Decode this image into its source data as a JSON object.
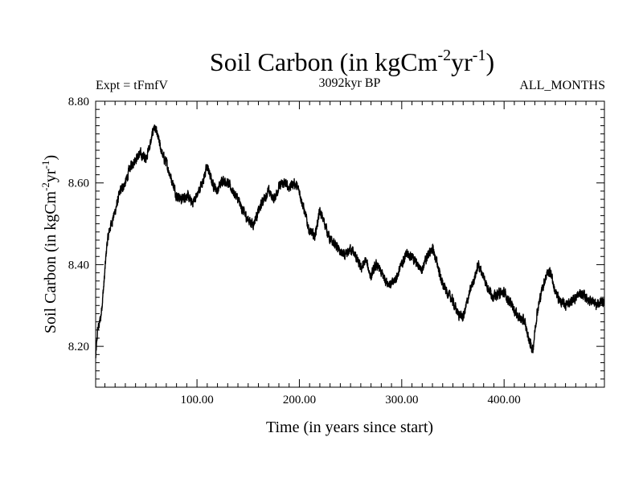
{
  "chart_data": {
    "type": "line",
    "title": {
      "base": "Soil Carbon (in kgCm",
      "exp1": "-2",
      "mid": "yr",
      "exp2": "-1",
      "close": ")"
    },
    "subtitle_left": "Expt = tFmfV",
    "subtitle_center": "3092kyr BP",
    "subtitle_right": "ALL_MONTHS",
    "xlabel": "Time (in years since start)",
    "ylabel": {
      "base": "Soil Carbon (in kgCm",
      "exp1": "-2",
      "mid": "yr",
      "exp2": "-1",
      "close": ")"
    },
    "xlim": [
      1,
      498
    ],
    "ylim": [
      8.1,
      8.8
    ],
    "x_ticks": [
      100,
      200,
      300,
      400
    ],
    "x_tick_labels": [
      "100.00",
      "200.00",
      "300.00",
      "400.00"
    ],
    "y_ticks": [
      8.2,
      8.4,
      8.6,
      8.8
    ],
    "y_tick_labels": [
      "8.20",
      "8.40",
      "8.60",
      "8.80"
    ],
    "series": [
      {
        "name": "Soil Carbon",
        "color": "#000000",
        "noise": 0.012,
        "points": [
          [
            1,
            8.17
          ],
          [
            3,
            8.24
          ],
          [
            6,
            8.27
          ],
          [
            9,
            8.35
          ],
          [
            12,
            8.45
          ],
          [
            15,
            8.49
          ],
          [
            20,
            8.53
          ],
          [
            25,
            8.58
          ],
          [
            30,
            8.6
          ],
          [
            35,
            8.64
          ],
          [
            40,
            8.66
          ],
          [
            45,
            8.67
          ],
          [
            50,
            8.66
          ],
          [
            55,
            8.7
          ],
          [
            58,
            8.74
          ],
          [
            62,
            8.71
          ],
          [
            66,
            8.67
          ],
          [
            70,
            8.65
          ],
          [
            75,
            8.61
          ],
          [
            80,
            8.57
          ],
          [
            85,
            8.56
          ],
          [
            90,
            8.57
          ],
          [
            95,
            8.55
          ],
          [
            100,
            8.57
          ],
          [
            105,
            8.6
          ],
          [
            110,
            8.64
          ],
          [
            115,
            8.6
          ],
          [
            120,
            8.58
          ],
          [
            125,
            8.61
          ],
          [
            130,
            8.6
          ],
          [
            135,
            8.58
          ],
          [
            140,
            8.56
          ],
          [
            145,
            8.53
          ],
          [
            150,
            8.51
          ],
          [
            155,
            8.5
          ],
          [
            160,
            8.53
          ],
          [
            165,
            8.56
          ],
          [
            170,
            8.58
          ],
          [
            175,
            8.56
          ],
          [
            180,
            8.59
          ],
          [
            185,
            8.6
          ],
          [
            190,
            8.59
          ],
          [
            195,
            8.6
          ],
          [
            200,
            8.58
          ],
          [
            205,
            8.53
          ],
          [
            210,
            8.48
          ],
          [
            215,
            8.47
          ],
          [
            220,
            8.53
          ],
          [
            225,
            8.5
          ],
          [
            230,
            8.46
          ],
          [
            235,
            8.45
          ],
          [
            240,
            8.43
          ],
          [
            245,
            8.42
          ],
          [
            250,
            8.44
          ],
          [
            255,
            8.42
          ],
          [
            260,
            8.39
          ],
          [
            265,
            8.41
          ],
          [
            270,
            8.37
          ],
          [
            275,
            8.4
          ],
          [
            280,
            8.38
          ],
          [
            285,
            8.36
          ],
          [
            290,
            8.35
          ],
          [
            295,
            8.37
          ],
          [
            300,
            8.4
          ],
          [
            305,
            8.43
          ],
          [
            310,
            8.42
          ],
          [
            315,
            8.4
          ],
          [
            320,
            8.39
          ],
          [
            325,
            8.42
          ],
          [
            330,
            8.44
          ],
          [
            335,
            8.4
          ],
          [
            340,
            8.35
          ],
          [
            345,
            8.33
          ],
          [
            350,
            8.31
          ],
          [
            355,
            8.28
          ],
          [
            360,
            8.27
          ],
          [
            365,
            8.32
          ],
          [
            370,
            8.36
          ],
          [
            375,
            8.4
          ],
          [
            380,
            8.37
          ],
          [
            385,
            8.34
          ],
          [
            390,
            8.32
          ],
          [
            395,
            8.33
          ],
          [
            400,
            8.33
          ],
          [
            405,
            8.31
          ],
          [
            410,
            8.29
          ],
          [
            415,
            8.27
          ],
          [
            420,
            8.26
          ],
          [
            425,
            8.21
          ],
          [
            428,
            8.19
          ],
          [
            432,
            8.28
          ],
          [
            437,
            8.34
          ],
          [
            442,
            8.38
          ],
          [
            446,
            8.38
          ],
          [
            450,
            8.33
          ],
          [
            455,
            8.31
          ],
          [
            460,
            8.3
          ],
          [
            465,
            8.31
          ],
          [
            470,
            8.32
          ],
          [
            475,
            8.33
          ],
          [
            480,
            8.32
          ],
          [
            485,
            8.31
          ],
          [
            490,
            8.3
          ],
          [
            495,
            8.31
          ],
          [
            498,
            8.31
          ]
        ]
      }
    ]
  }
}
